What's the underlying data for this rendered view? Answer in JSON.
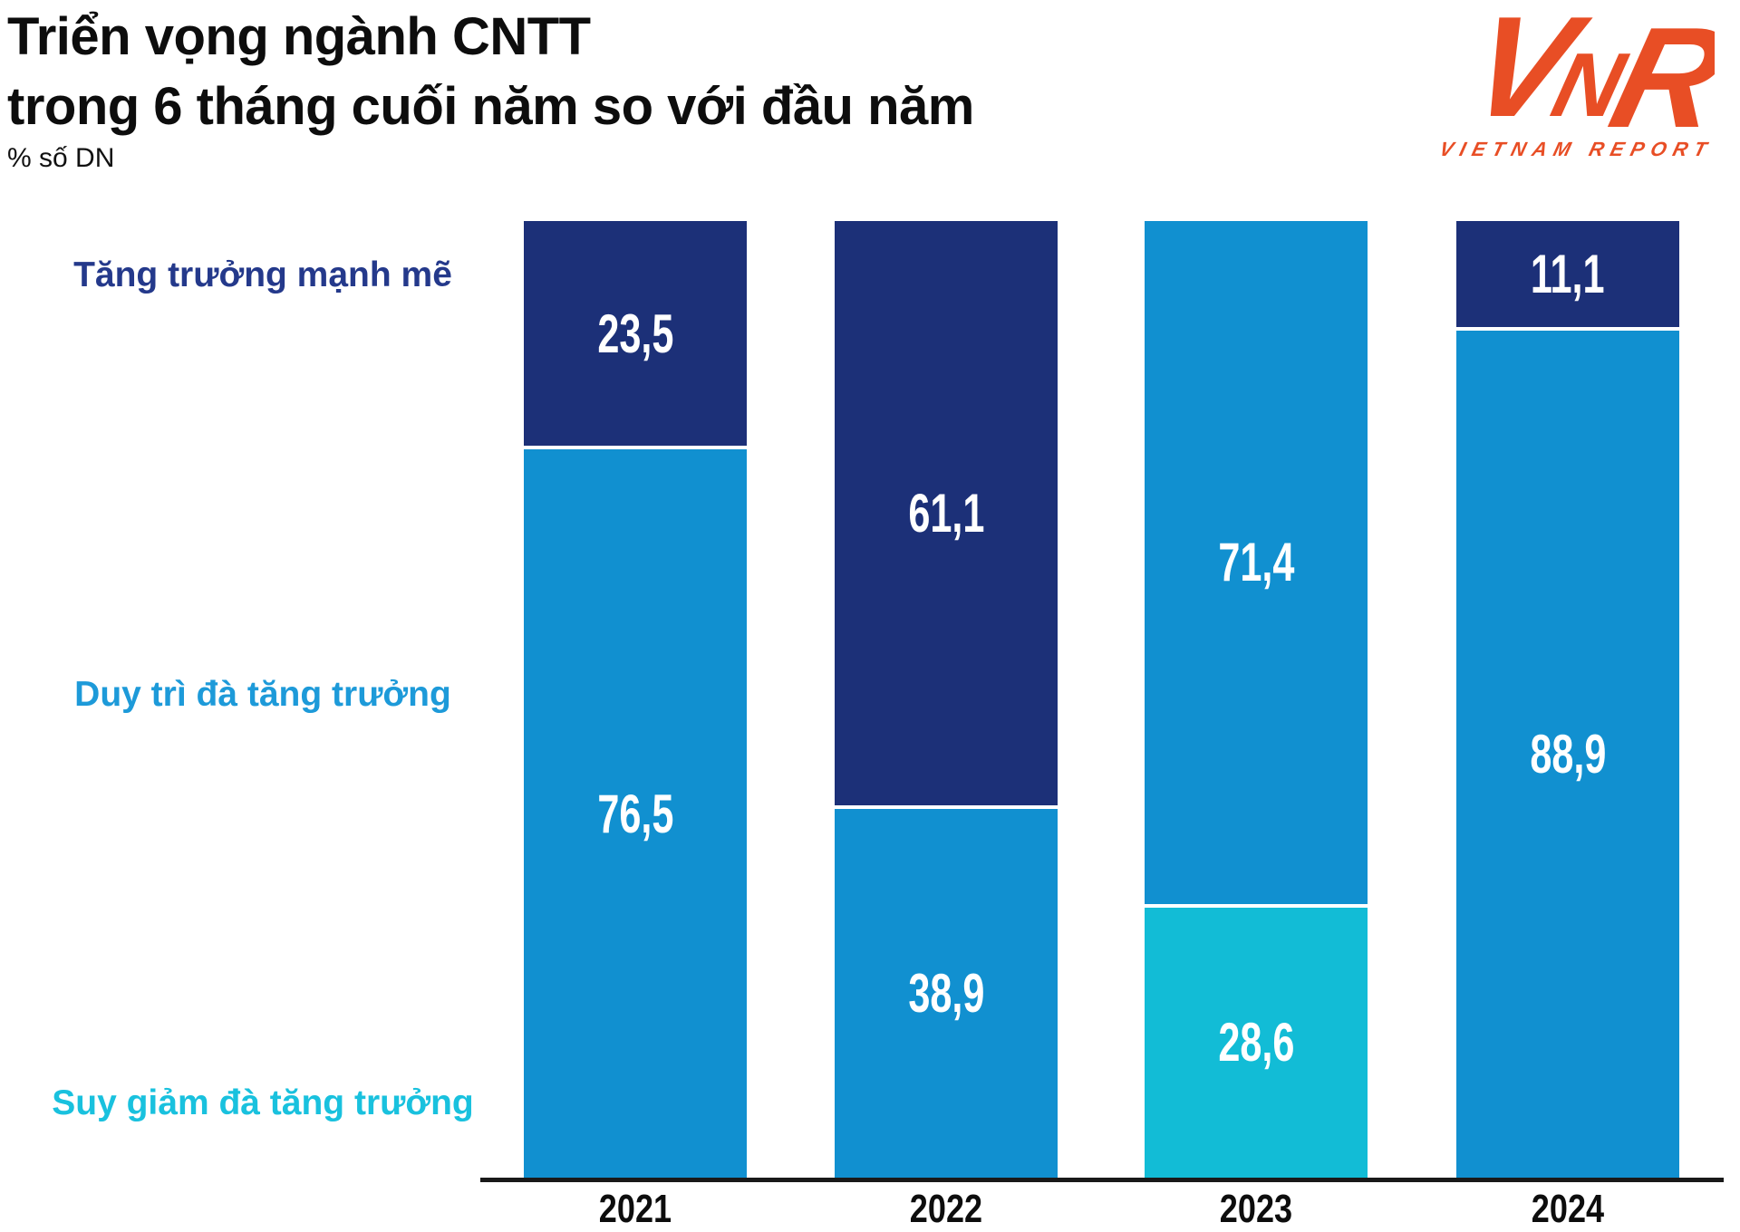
{
  "header": {
    "title_line1": "Triển vọng ngành CNTT",
    "title_line2": "trong 6 tháng cuối năm so với đầu năm",
    "unit_label": "% số DN"
  },
  "logo": {
    "letter_v": "V",
    "letter_n": "N",
    "letter_r": "R",
    "tagline": "VIETNAM REPORT",
    "color": "#E84E25"
  },
  "chart_data": {
    "type": "bar",
    "stacked": true,
    "orientation": "vertical",
    "unit": "% số DN",
    "ylim": [
      0,
      100
    ],
    "grid": false,
    "legend_position": "left",
    "value_label_color": "#FFFFFF",
    "value_label_decimal_separator": ",",
    "categories": [
      "2021",
      "2022",
      "2023",
      "2024"
    ],
    "series": [
      {
        "name": "Tăng trưởng mạnh mẽ",
        "color": "#1C3078",
        "text_color": "#24398B",
        "values": [
          23.5,
          61.1,
          null,
          11.1
        ]
      },
      {
        "name": "Duy trì đà tăng trưởng",
        "color": "#1190D0",
        "text_color": "#1D9AD9",
        "values": [
          76.5,
          38.9,
          71.4,
          88.9
        ]
      },
      {
        "name": "Suy giảm đà tăng trưởng",
        "color": "#12BCD6",
        "text_color": "#19C1DE",
        "values": [
          null,
          null,
          28.6,
          null
        ]
      }
    ]
  }
}
